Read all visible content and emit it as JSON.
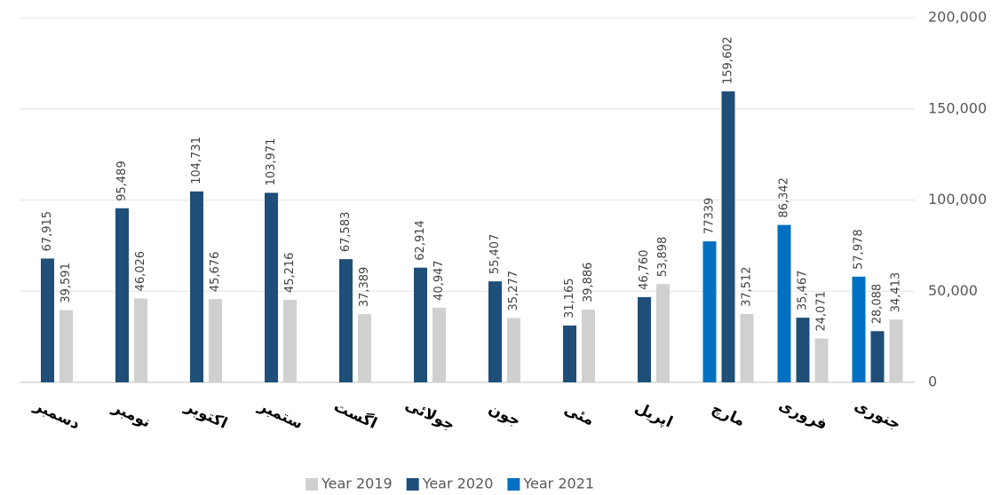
{
  "chart_data": {
    "type": "bar",
    "categories": [
      "دسمبر",
      "نومبر",
      "اکتوبر",
      "ستمبر",
      "اگست",
      "جولائی",
      "جون",
      "مئی",
      "اپریل",
      "مارچ",
      "فروری",
      "جنوری"
    ],
    "series": [
      {
        "name": "Year 2021",
        "color": "#0070c0",
        "values": [
          null,
          null,
          null,
          null,
          null,
          null,
          null,
          null,
          null,
          77339,
          86342,
          57978
        ],
        "value_labels": [
          null,
          null,
          null,
          null,
          null,
          null,
          null,
          null,
          null,
          "77339",
          "86,342",
          "57,978"
        ]
      },
      {
        "name": "Year 2020",
        "color": "#1f4e79",
        "values": [
          67915,
          95489,
          104731,
          103971,
          67583,
          62914,
          55407,
          31165,
          46760,
          159602,
          35467,
          28088
        ],
        "value_labels": [
          "67,915",
          "95,489",
          "104,731",
          "103,971",
          "67,583",
          "62,914",
          "55,407",
          "31,165",
          "46,760",
          "159,602",
          "35,467",
          "28,088"
        ]
      },
      {
        "name": "Year 2019",
        "color": "#d0d0d0",
        "values": [
          39591,
          46026,
          45676,
          45216,
          37389,
          40947,
          35277,
          39886,
          53898,
          37512,
          24071,
          34413
        ],
        "value_labels": [
          "39,591",
          "46,026",
          "45,676",
          "45,216",
          "37,389",
          "40,947",
          "35,277",
          "39,886",
          "53,898",
          "37,512",
          "24,071",
          "34,413"
        ]
      }
    ],
    "ylim": [
      0,
      200000
    ],
    "yticks": [
      0,
      {
        "value": 50000,
        "label": "50,000"
      },
      {
        "value": 100000,
        "label": "100,000"
      },
      {
        "value": 150000,
        "label": "150,000"
      },
      {
        "value": 200000,
        "label": "200,000"
      }
    ],
    "grid": true,
    "legend": "bottom"
  }
}
